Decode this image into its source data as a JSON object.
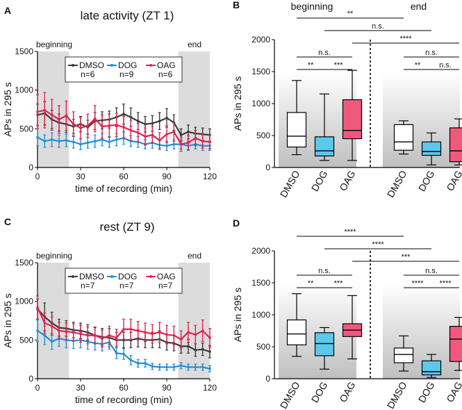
{
  "chart_data": [
    {
      "panel": "A",
      "type": "line",
      "title": "late activity (ZT 1)",
      "xlabel": "time of recording (min)",
      "ylabel": "APs in 295 s",
      "xlim": [
        0,
        120
      ],
      "ylim": [
        0,
        1500
      ],
      "xticks": [
        "0",
        "30",
        "60",
        "90",
        "120"
      ],
      "yticks": [
        "0",
        "500",
        "1000",
        "1500"
      ],
      "shaded": [
        {
          "label": "beginning",
          "range": [
            0,
            22
          ]
        },
        {
          "label": "end",
          "range": [
            98,
            120
          ]
        }
      ],
      "x": [
        0,
        5,
        10,
        15,
        20,
        25,
        30,
        35,
        40,
        45,
        50,
        55,
        60,
        65,
        70,
        75,
        80,
        85,
        90,
        95,
        100,
        105,
        110,
        115,
        120
      ],
      "series": [
        {
          "name": "DMSO",
          "n": "n=6",
          "color": "#3a3a3a",
          "values": [
            680,
            700,
            620,
            580,
            560,
            530,
            560,
            520,
            600,
            610,
            620,
            650,
            690,
            650,
            600,
            560,
            570,
            600,
            640,
            580,
            420,
            460,
            440,
            430,
            420
          ],
          "errors": [
            140,
            150,
            120,
            110,
            110,
            90,
            100,
            90,
            110,
            110,
            110,
            120,
            130,
            120,
            110,
            100,
            100,
            110,
            120,
            100,
            80,
            90,
            80,
            80,
            80
          ]
        },
        {
          "name": "DOG",
          "n": "n=9",
          "color": "#1f8fd8",
          "values": [
            390,
            340,
            360,
            340,
            350,
            330,
            300,
            320,
            340,
            360,
            330,
            360,
            380,
            340,
            330,
            300,
            320,
            290,
            280,
            300,
            300,
            280,
            300,
            280,
            280
          ],
          "errors": [
            110,
            80,
            90,
            80,
            80,
            80,
            70,
            70,
            80,
            80,
            70,
            80,
            80,
            70,
            70,
            60,
            70,
            60,
            60,
            60,
            60,
            60,
            60,
            60,
            60
          ]
        },
        {
          "name": "OAG",
          "n": "n=6",
          "color": "#e0224e",
          "values": [
            720,
            740,
            680,
            620,
            670,
            560,
            510,
            540,
            630,
            530,
            540,
            550,
            520,
            480,
            450,
            400,
            420,
            350,
            430,
            460,
            300,
            320,
            380,
            340,
            330
          ],
          "errors": [
            220,
            230,
            200,
            180,
            190,
            160,
            140,
            150,
            170,
            150,
            150,
            150,
            140,
            130,
            120,
            110,
            110,
            100,
            110,
            120,
            90,
            90,
            100,
            90,
            90
          ]
        }
      ]
    },
    {
      "panel": "B",
      "type": "box",
      "ylabel": "APs in 295 s",
      "ylim": [
        0,
        2000
      ],
      "yticks": [
        "0",
        "500",
        "1000",
        "1500",
        "2000"
      ],
      "groups": [
        "beginning",
        "end"
      ],
      "categories": [
        "DMSO",
        "DOG",
        "OAG"
      ],
      "series": [
        {
          "group": "beginning",
          "name": "DMSO",
          "color": "#ffffff",
          "min": 200,
          "q1": 320,
          "median": 490,
          "q3": 860,
          "max": 1360
        },
        {
          "group": "beginning",
          "name": "DOG",
          "color": "#5bc8ec",
          "min": 110,
          "q1": 180,
          "median": 260,
          "q3": 480,
          "max": 1150
        },
        {
          "group": "beginning",
          "name": "OAG",
          "color": "#f0587e",
          "min": 110,
          "q1": 450,
          "median": 580,
          "q3": 1060,
          "max": 1520
        },
        {
          "group": "end",
          "name": "DMSO",
          "color": "#ffffff",
          "min": 210,
          "q1": 270,
          "median": 400,
          "q3": 670,
          "max": 730
        },
        {
          "group": "end",
          "name": "DOG",
          "color": "#5bc8ec",
          "min": 40,
          "q1": 190,
          "median": 250,
          "q3": 400,
          "max": 540
        },
        {
          "group": "end",
          "name": "OAG",
          "color": "#f0587e",
          "min": 40,
          "q1": 90,
          "median": 260,
          "q3": 620,
          "max": 760
        }
      ],
      "comparisons": [
        {
          "label": "**",
          "from": "beginning-DMSO",
          "to": "end-DMSO"
        },
        {
          "label": "n.s.",
          "from": "beginning-DOG",
          "to": "end-DOG"
        },
        {
          "label": "****",
          "from": "beginning-OAG",
          "to": "end-OAG"
        },
        {
          "label": "n.s.",
          "from": "beginning-DMSO",
          "to": "beginning-OAG"
        },
        {
          "label": "**",
          "from": "beginning-DMSO",
          "to": "beginning-DOG"
        },
        {
          "label": "***",
          "from": "beginning-DOG",
          "to": "beginning-OAG"
        },
        {
          "label": "n.s.",
          "from": "end-DMSO",
          "to": "end-OAG"
        },
        {
          "label": "**",
          "from": "end-DMSO",
          "to": "end-DOG"
        },
        {
          "label": "n.s.",
          "from": "end-DOG",
          "to": "end-OAG"
        }
      ]
    },
    {
      "panel": "C",
      "type": "line",
      "title": "rest (ZT 9)",
      "xlabel": "time of recording (min)",
      "ylabel": "APs in 295 s",
      "xlim": [
        0,
        120
      ],
      "ylim": [
        0,
        1500
      ],
      "xticks": [
        "0",
        "30",
        "60",
        "90",
        "120"
      ],
      "yticks": [
        "0",
        "500",
        "1000",
        "1500"
      ],
      "shaded": [
        {
          "label": "beginning",
          "range": [
            0,
            22
          ]
        },
        {
          "label": "end",
          "range": [
            98,
            120
          ]
        }
      ],
      "x": [
        0,
        5,
        10,
        15,
        20,
        25,
        30,
        35,
        40,
        45,
        50,
        55,
        60,
        65,
        70,
        75,
        80,
        85,
        90,
        95,
        100,
        105,
        110,
        115,
        120
      ],
      "series": [
        {
          "name": "DMSO",
          "n": "n=7",
          "color": "#3a3a3a",
          "values": [
            900,
            800,
            720,
            660,
            650,
            630,
            620,
            600,
            560,
            540,
            530,
            500,
            500,
            500,
            520,
            500,
            500,
            510,
            470,
            460,
            420,
            420,
            370,
            380,
            350
          ],
          "errors": [
            130,
            180,
            140,
            110,
            100,
            100,
            100,
            100,
            100,
            110,
            120,
            100,
            100,
            100,
            110,
            100,
            100,
            110,
            100,
            100,
            90,
            90,
            80,
            80,
            80
          ]
        },
        {
          "name": "DOG",
          "n": "n=7",
          "color": "#1f8fd8",
          "values": [
            620,
            560,
            480,
            520,
            500,
            490,
            500,
            480,
            460,
            450,
            470,
            330,
            320,
            240,
            200,
            200,
            160,
            150,
            150,
            150,
            170,
            150,
            150,
            150,
            130
          ],
          "errors": [
            140,
            120,
            100,
            100,
            100,
            100,
            100,
            100,
            90,
            90,
            90,
            70,
            70,
            60,
            50,
            50,
            40,
            40,
            40,
            40,
            40,
            40,
            40,
            40,
            40
          ]
        },
        {
          "name": "OAG",
          "n": "n=7",
          "color": "#e0224e",
          "values": [
            920,
            720,
            680,
            620,
            610,
            600,
            580,
            560,
            560,
            520,
            560,
            530,
            640,
            640,
            620,
            600,
            580,
            600,
            570,
            560,
            510,
            600,
            570,
            620,
            530
          ],
          "errors": [
            150,
            130,
            120,
            110,
            110,
            110,
            110,
            110,
            110,
            110,
            120,
            110,
            130,
            130,
            120,
            120,
            120,
            130,
            120,
            120,
            110,
            130,
            120,
            140,
            120
          ]
        }
      ]
    },
    {
      "panel": "D",
      "type": "box",
      "ylabel": "APs in 295 s",
      "ylim": [
        0,
        2000
      ],
      "yticks": [
        "0",
        "500",
        "1000",
        "1500",
        "2000"
      ],
      "groups": [
        "beginning",
        "end"
      ],
      "categories": [
        "DMSO",
        "DOG",
        "OAG"
      ],
      "series": [
        {
          "group": "beginning",
          "name": "DMSO",
          "color": "#ffffff",
          "min": 350,
          "q1": 530,
          "median": 700,
          "q3": 920,
          "max": 1330
        },
        {
          "group": "beginning",
          "name": "DOG",
          "color": "#5bc8ec",
          "min": 150,
          "q1": 360,
          "median": 550,
          "q3": 720,
          "max": 800
        },
        {
          "group": "beginning",
          "name": "OAG",
          "color": "#f0587e",
          "min": 310,
          "q1": 660,
          "median": 760,
          "q3": 860,
          "max": 1300
        },
        {
          "group": "end",
          "name": "DMSO",
          "color": "#ffffff",
          "min": 120,
          "q1": 250,
          "median": 380,
          "q3": 480,
          "max": 670
        },
        {
          "group": "end",
          "name": "DOG",
          "color": "#5bc8ec",
          "min": 20,
          "q1": 60,
          "median": 110,
          "q3": 280,
          "max": 380
        },
        {
          "group": "end",
          "name": "OAG",
          "color": "#f0587e",
          "min": 130,
          "q1": 270,
          "median": 620,
          "q3": 820,
          "max": 960
        }
      ],
      "comparisons": [
        {
          "label": "****",
          "from": "beginning-DMSO",
          "to": "end-DMSO"
        },
        {
          "label": "****",
          "from": "beginning-DOG",
          "to": "end-DOG"
        },
        {
          "label": "***",
          "from": "beginning-OAG",
          "to": "end-OAG"
        },
        {
          "label": "n.s.",
          "from": "beginning-DMSO",
          "to": "beginning-OAG"
        },
        {
          "label": "**",
          "from": "beginning-DMSO",
          "to": "beginning-DOG"
        },
        {
          "label": "***",
          "from": "beginning-DOG",
          "to": "beginning-OAG"
        },
        {
          "label": "n.s.",
          "from": "end-DMSO",
          "to": "end-OAG"
        },
        {
          "label": "****",
          "from": "end-DMSO",
          "to": "end-DOG"
        },
        {
          "label": "****",
          "from": "end-DOG",
          "to": "end-OAG"
        }
      ]
    }
  ]
}
